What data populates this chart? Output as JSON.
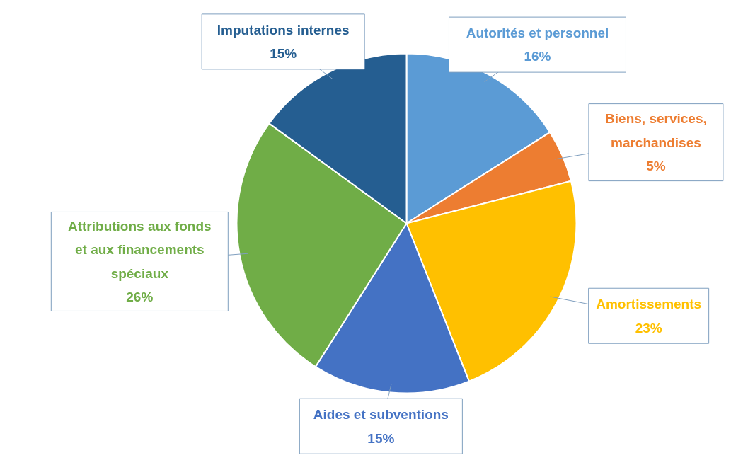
{
  "chart_data": {
    "type": "pie",
    "categories": [
      "Autorités et personnel",
      "Biens, services, marchandises",
      "Amortissements",
      "Aides et subventions",
      "Attributions aux fonds et aux financements spéciaux",
      "Imputations internes"
    ],
    "values": [
      16,
      5,
      23,
      15,
      26,
      15
    ],
    "colors": [
      "#5b9bd5",
      "#ed7d31",
      "#ffc000",
      "#4472c4",
      "#70ad47",
      "#255e91"
    ],
    "value_labels": [
      "16%",
      "5%",
      "23%",
      "15%",
      "26%",
      "15%"
    ]
  }
}
